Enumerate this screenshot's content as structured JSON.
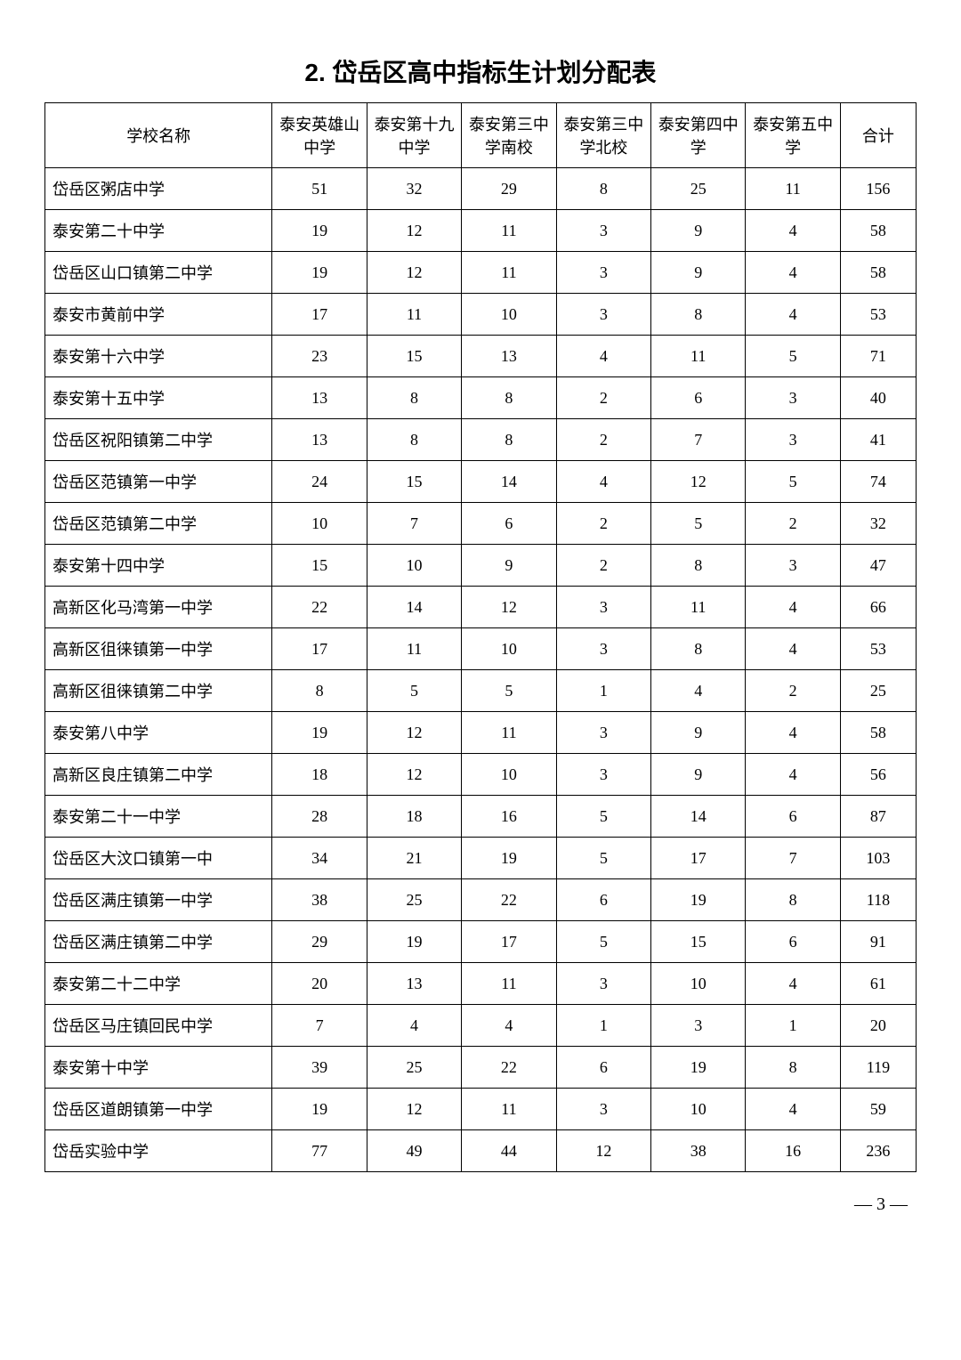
{
  "title": "2. 岱岳区高中指标生计划分配表",
  "pageNumber": "— 3 —",
  "headers": {
    "school": "学校名称",
    "col1": "泰安英雄山中学",
    "col2": "泰安第十九中学",
    "col3": "泰安第三中学南校",
    "col4": "泰安第三中学北校",
    "col5": "泰安第四中学",
    "col6": "泰安第五中学",
    "total": "合计"
  },
  "rows": [
    {
      "name": "岱岳区粥店中学",
      "c1": 51,
      "c2": 32,
      "c3": 29,
      "c4": 8,
      "c5": 25,
      "c6": 11,
      "total": 156
    },
    {
      "name": "泰安第二十中学",
      "c1": 19,
      "c2": 12,
      "c3": 11,
      "c4": 3,
      "c5": 9,
      "c6": 4,
      "total": 58
    },
    {
      "name": "岱岳区山口镇第二中学",
      "c1": 19,
      "c2": 12,
      "c3": 11,
      "c4": 3,
      "c5": 9,
      "c6": 4,
      "total": 58
    },
    {
      "name": "泰安市黄前中学",
      "c1": 17,
      "c2": 11,
      "c3": 10,
      "c4": 3,
      "c5": 8,
      "c6": 4,
      "total": 53
    },
    {
      "name": "泰安第十六中学",
      "c1": 23,
      "c2": 15,
      "c3": 13,
      "c4": 4,
      "c5": 11,
      "c6": 5,
      "total": 71
    },
    {
      "name": "泰安第十五中学",
      "c1": 13,
      "c2": 8,
      "c3": 8,
      "c4": 2,
      "c5": 6,
      "c6": 3,
      "total": 40
    },
    {
      "name": "岱岳区祝阳镇第二中学",
      "c1": 13,
      "c2": 8,
      "c3": 8,
      "c4": 2,
      "c5": 7,
      "c6": 3,
      "total": 41
    },
    {
      "name": "岱岳区范镇第一中学",
      "c1": 24,
      "c2": 15,
      "c3": 14,
      "c4": 4,
      "c5": 12,
      "c6": 5,
      "total": 74
    },
    {
      "name": "岱岳区范镇第二中学",
      "c1": 10,
      "c2": 7,
      "c3": 6,
      "c4": 2,
      "c5": 5,
      "c6": 2,
      "total": 32
    },
    {
      "name": "泰安第十四中学",
      "c1": 15,
      "c2": 10,
      "c3": 9,
      "c4": 2,
      "c5": 8,
      "c6": 3,
      "total": 47
    },
    {
      "name": "高新区化马湾第一中学",
      "c1": 22,
      "c2": 14,
      "c3": 12,
      "c4": 3,
      "c5": 11,
      "c6": 4,
      "total": 66
    },
    {
      "name": "高新区徂徕镇第一中学",
      "c1": 17,
      "c2": 11,
      "c3": 10,
      "c4": 3,
      "c5": 8,
      "c6": 4,
      "total": 53
    },
    {
      "name": "高新区徂徕镇第二中学",
      "c1": 8,
      "c2": 5,
      "c3": 5,
      "c4": 1,
      "c5": 4,
      "c6": 2,
      "total": 25
    },
    {
      "name": "泰安第八中学",
      "c1": 19,
      "c2": 12,
      "c3": 11,
      "c4": 3,
      "c5": 9,
      "c6": 4,
      "total": 58
    },
    {
      "name": "高新区良庄镇第二中学",
      "c1": 18,
      "c2": 12,
      "c3": 10,
      "c4": 3,
      "c5": 9,
      "c6": 4,
      "total": 56
    },
    {
      "name": "泰安第二十一中学",
      "c1": 28,
      "c2": 18,
      "c3": 16,
      "c4": 5,
      "c5": 14,
      "c6": 6,
      "total": 87
    },
    {
      "name": "岱岳区大汶口镇第一中",
      "c1": 34,
      "c2": 21,
      "c3": 19,
      "c4": 5,
      "c5": 17,
      "c6": 7,
      "total": 103
    },
    {
      "name": "岱岳区满庄镇第一中学",
      "c1": 38,
      "c2": 25,
      "c3": 22,
      "c4": 6,
      "c5": 19,
      "c6": 8,
      "total": 118
    },
    {
      "name": "岱岳区满庄镇第二中学",
      "c1": 29,
      "c2": 19,
      "c3": 17,
      "c4": 5,
      "c5": 15,
      "c6": 6,
      "total": 91
    },
    {
      "name": "泰安第二十二中学",
      "c1": 20,
      "c2": 13,
      "c3": 11,
      "c4": 3,
      "c5": 10,
      "c6": 4,
      "total": 61
    },
    {
      "name": "岱岳区马庄镇回民中学",
      "c1": 7,
      "c2": 4,
      "c3": 4,
      "c4": 1,
      "c5": 3,
      "c6": 1,
      "total": 20
    },
    {
      "name": "泰安第十中学",
      "c1": 39,
      "c2": 25,
      "c3": 22,
      "c4": 6,
      "c5": 19,
      "c6": 8,
      "total": 119
    },
    {
      "name": "岱岳区道朗镇第一中学",
      "c1": 19,
      "c2": 12,
      "c3": 11,
      "c4": 3,
      "c5": 10,
      "c6": 4,
      "total": 59
    },
    {
      "name": "岱岳实验中学",
      "c1": 77,
      "c2": 49,
      "c3": 44,
      "c4": 12,
      "c5": 38,
      "c6": 16,
      "total": 236
    }
  ]
}
